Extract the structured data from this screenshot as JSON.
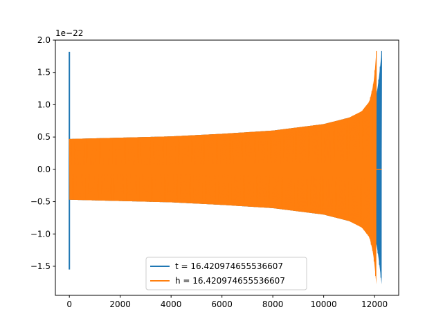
{
  "chart_data": {
    "type": "line",
    "title": "",
    "xlabel": "",
    "ylabel": "",
    "y_offset_text": "1e−22",
    "xlim": [
      -550,
      12950
    ],
    "ylim": [
      -1.95,
      2.0
    ],
    "x_ticks": [
      0,
      2000,
      4000,
      6000,
      8000,
      10000,
      12000
    ],
    "x_tick_labels": [
      "0",
      "2000",
      "4000",
      "6000",
      "8000",
      "10000",
      "12000"
    ],
    "y_ticks": [
      -1.5,
      -1.0,
      -0.5,
      0.0,
      0.5,
      1.0,
      1.5,
      2.0
    ],
    "y_tick_labels": [
      "−1.5",
      "−1.0",
      "−0.5",
      "0.0",
      "0.5",
      "1.0",
      "1.5",
      "2.0"
    ],
    "grid": false,
    "legend_position": "lower-center",
    "series": [
      {
        "name": "t = 16.420974655536607",
        "color": "#1f77b4",
        "envelope_upper": {
          "x": [
            0,
            2000,
            4000,
            6000,
            8000,
            10000,
            11000,
            11500,
            11800,
            12000,
            12100,
            12200,
            12280
          ],
          "y": [
            0.47,
            0.49,
            0.51,
            0.55,
            0.6,
            0.7,
            0.8,
            0.88,
            0.98,
            1.05,
            1.2,
            1.5,
            1.83
          ]
        },
        "envelope_lower": {
          "x": [
            0,
            2000,
            4000,
            6000,
            8000,
            10000,
            11000,
            11500,
            11800,
            12000,
            12100,
            12200,
            12280
          ],
          "y": [
            -0.47,
            -0.49,
            -0.51,
            -0.55,
            -0.6,
            -0.7,
            -0.8,
            -0.88,
            -0.98,
            -1.05,
            -1.2,
            -1.5,
            -1.78
          ]
        },
        "spike_start": {
          "x": 0,
          "ymin": -1.55,
          "ymax": 1.82
        }
      },
      {
        "name": "h = 16.420974655536607",
        "color": "#ff7f0e",
        "envelope_upper": {
          "x": [
            0,
            2000,
            4000,
            6000,
            8000,
            10000,
            11000,
            11500,
            11800,
            11950,
            12030,
            12070
          ],
          "y": [
            0.47,
            0.49,
            0.51,
            0.55,
            0.6,
            0.7,
            0.8,
            0.9,
            1.05,
            1.3,
            1.6,
            1.83
          ]
        },
        "envelope_lower": {
          "x": [
            0,
            2000,
            4000,
            6000,
            8000,
            10000,
            11000,
            11500,
            11800,
            11950,
            12030,
            12070
          ],
          "y": [
            -0.47,
            -0.49,
            -0.51,
            -0.55,
            -0.6,
            -0.7,
            -0.8,
            -0.9,
            -1.05,
            -1.3,
            -1.6,
            -1.78
          ]
        },
        "tail": {
          "x": [
            12070,
            12280
          ],
          "y": 0.0
        }
      }
    ]
  }
}
